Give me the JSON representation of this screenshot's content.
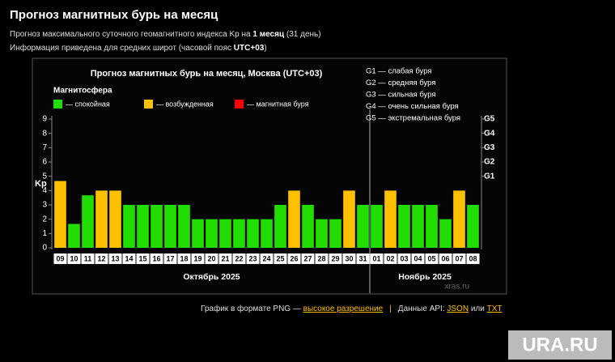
{
  "header": {
    "title": "Прогноз магнитных бурь на месяц",
    "line1": [
      "Прогноз максимального суточного геомагнитного индекса Kp на ",
      "1 месяц",
      " (31 день)"
    ],
    "line2": [
      "Информация приведена для средних широт (часовой пояс ",
      "UTC+03",
      ")"
    ]
  },
  "chart_data": {
    "type": "bar",
    "title": "Прогноз магнитных бурь на месяц, Москва (UTC+03)",
    "legend_title": "Магнитосфера",
    "legend": [
      {
        "label": "— спокойная",
        "color": "#22dd00"
      },
      {
        "label": "— возбужденная",
        "color": "#ffc000"
      },
      {
        "label": "— магнитная буря",
        "color": "#ff0000"
      }
    ],
    "g_scale": [
      "G1 — слабая буря",
      "G2 — средняя буря",
      "G3 — сильная буря",
      "G4 — очень сильная буря",
      "G5 — экстремальная буря"
    ],
    "y_label": "Kp",
    "categories": [
      "09",
      "10",
      "11",
      "12",
      "13",
      "14",
      "15",
      "16",
      "17",
      "18",
      "19",
      "20",
      "21",
      "22",
      "23",
      "24",
      "25",
      "26",
      "27",
      "28",
      "29",
      "30",
      "31",
      "01",
      "02",
      "03",
      "04",
      "05",
      "06",
      "07",
      "08"
    ],
    "values": [
      4.67,
      1.67,
      3.67,
      4,
      4,
      3,
      3,
      3,
      3,
      3,
      2,
      2,
      2,
      2,
      2,
      2,
      3,
      4,
      3,
      2,
      2,
      4,
      3,
      3,
      4,
      3,
      3,
      3,
      2,
      4,
      3
    ],
    "colors": [
      "#ffc000",
      "#22dd00",
      "#22dd00",
      "#ffc000",
      "#ffc000",
      "#22dd00",
      "#22dd00",
      "#22dd00",
      "#22dd00",
      "#22dd00",
      "#22dd00",
      "#22dd00",
      "#22dd00",
      "#22dd00",
      "#22dd00",
      "#22dd00",
      "#22dd00",
      "#ffc000",
      "#22dd00",
      "#22dd00",
      "#22dd00",
      "#ffc000",
      "#22dd00",
      "#22dd00",
      "#ffc000",
      "#22dd00",
      "#22dd00",
      "#22dd00",
      "#22dd00",
      "#ffc000",
      "#22dd00"
    ],
    "x_groups": [
      "Октябрь 2025",
      "Ноябрь 2025"
    ],
    "ylim": [
      0,
      9
    ],
    "yticks": [
      0,
      1,
      2,
      3,
      4,
      5,
      6,
      7,
      8,
      9
    ],
    "y2ticks": [
      {
        "value": 5,
        "label": "G1"
      },
      {
        "value": 6,
        "label": "G2"
      },
      {
        "value": 7,
        "label": "G3"
      },
      {
        "value": 8,
        "label": "G4"
      },
      {
        "value": 9,
        "label": "G5"
      }
    ],
    "source": "xras.ru"
  },
  "footer": {
    "parts": [
      "График в формате PNG — ",
      "высокое разрешение",
      "|",
      "Данные API: ",
      "JSON",
      " или ",
      "TXT"
    ]
  },
  "watermark": "URA.RU"
}
